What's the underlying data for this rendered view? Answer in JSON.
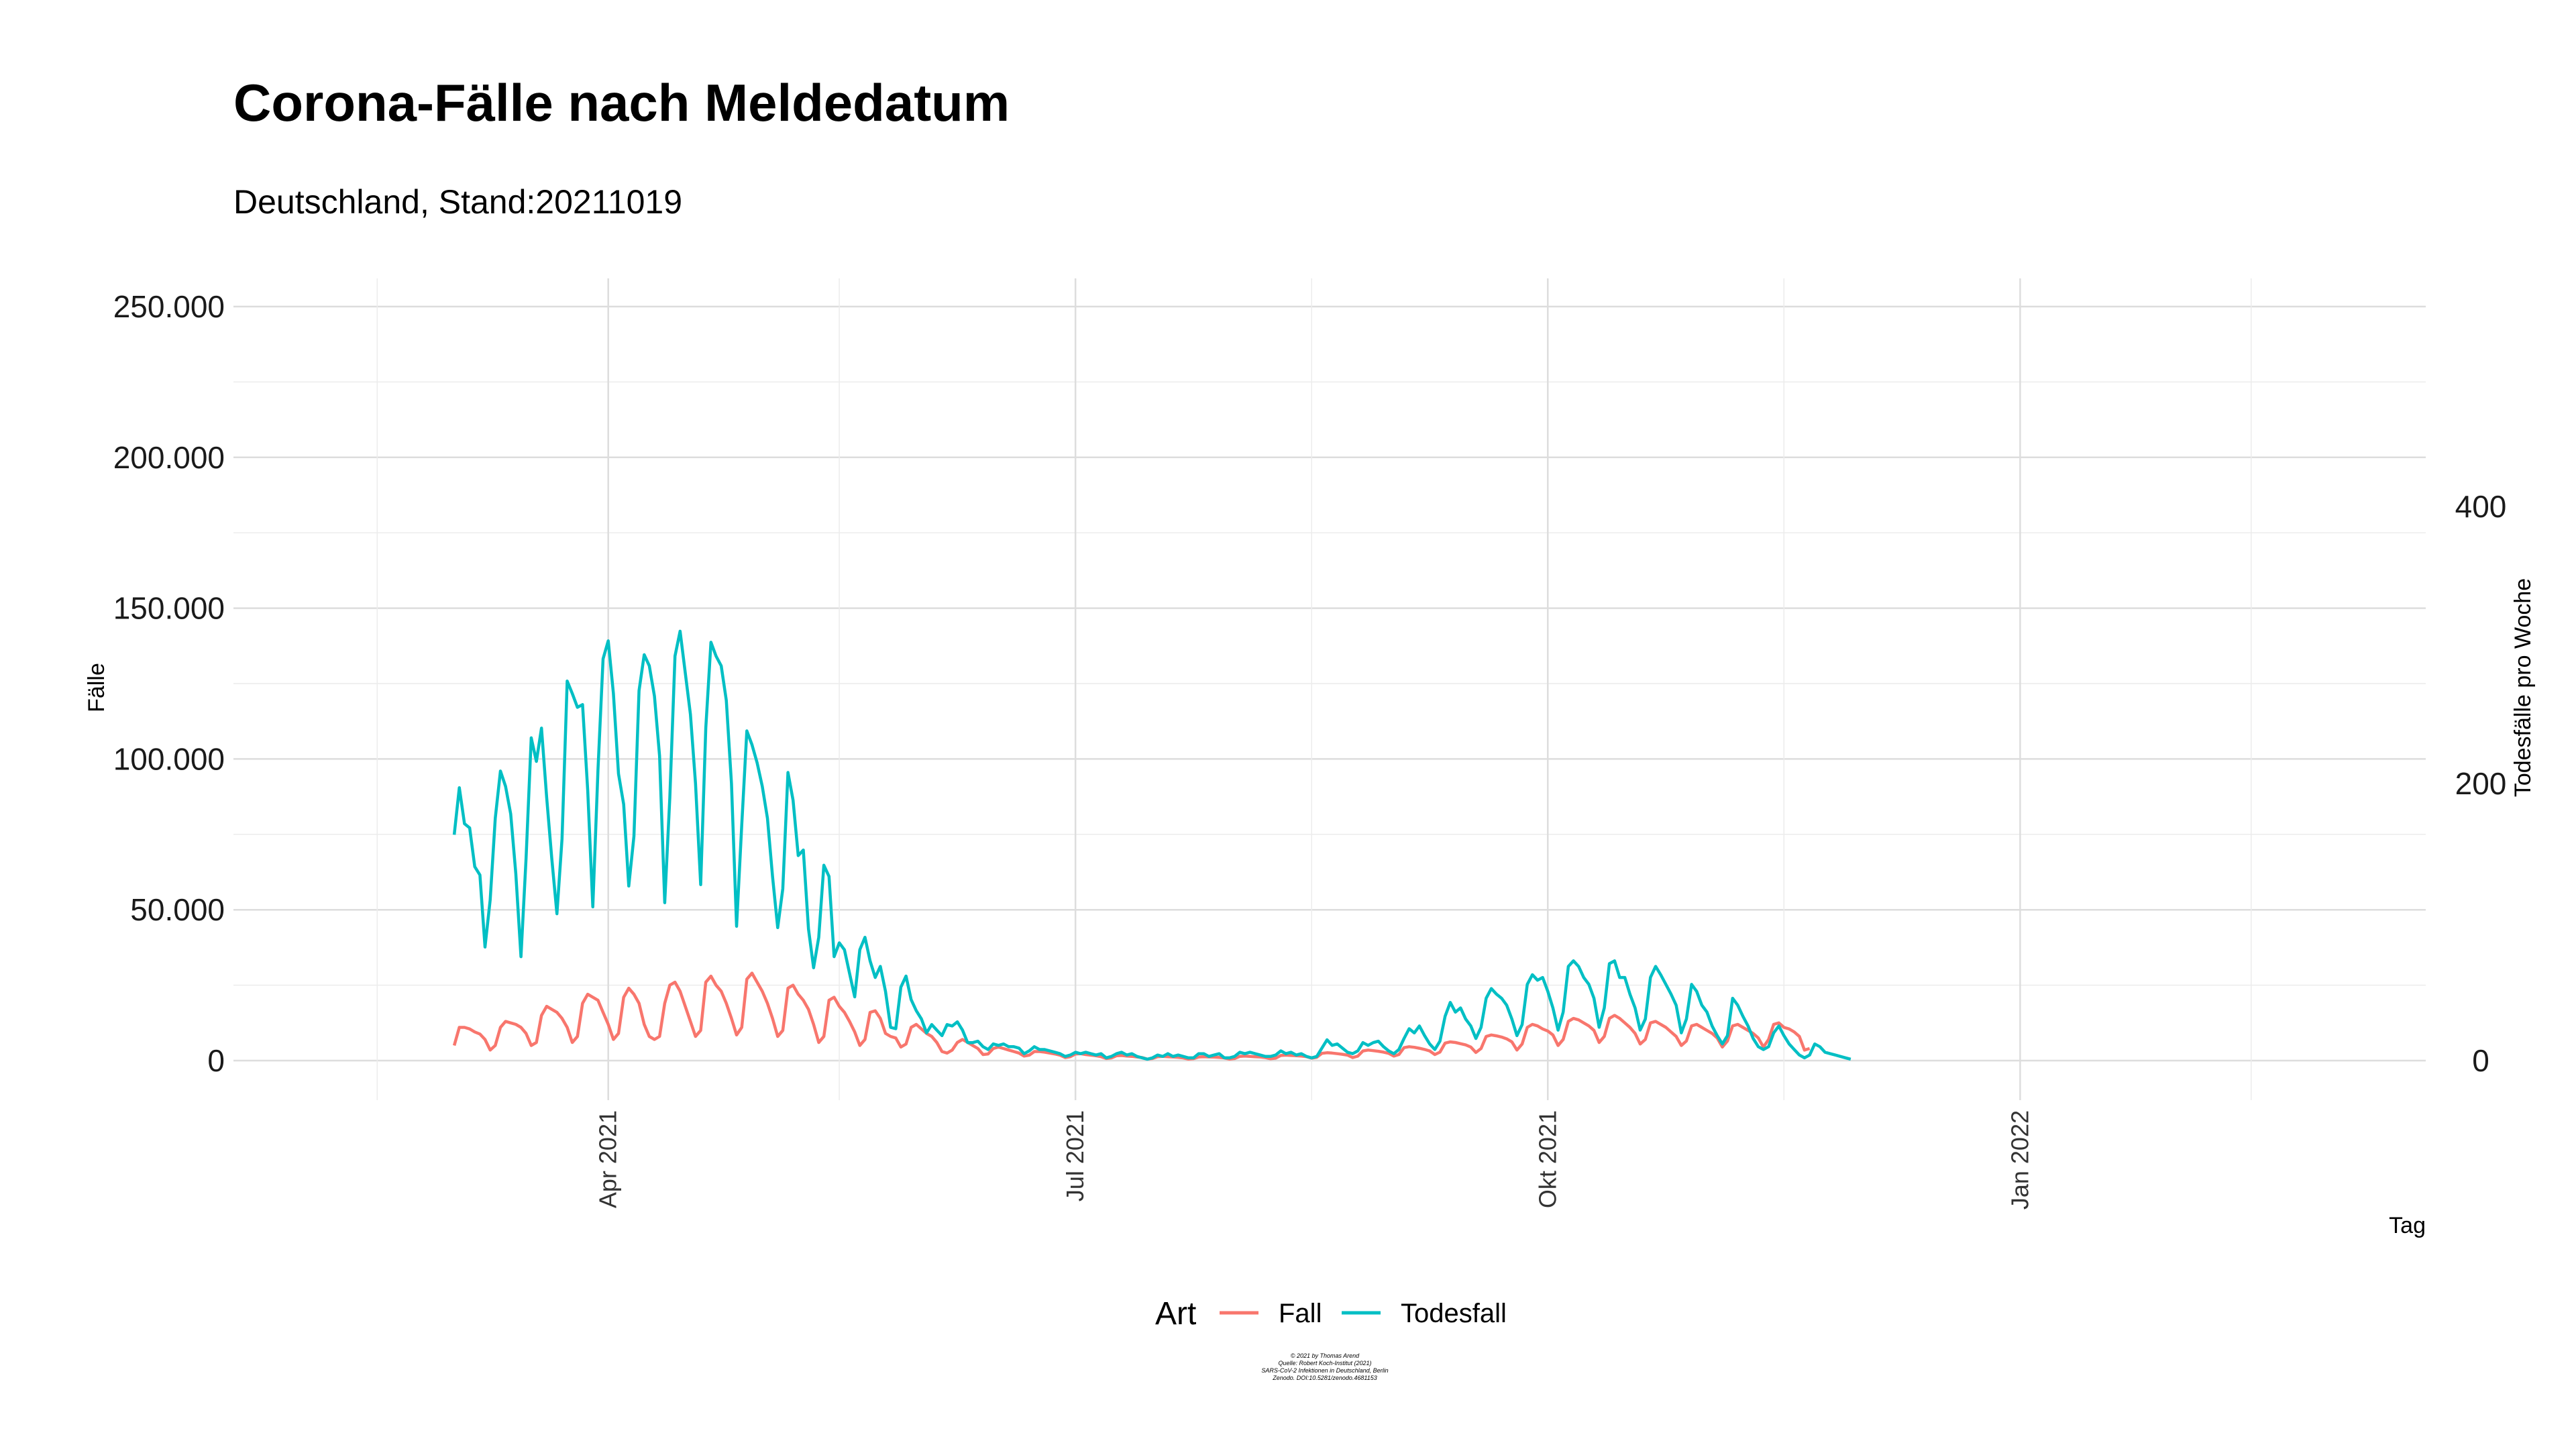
{
  "chart_data": {
    "type": "line",
    "title": "Corona-Fälle nach Meldedatum",
    "subtitle": "Deutschland, Stand:20211019",
    "xlabel": "Tag",
    "ylabel": "Fälle",
    "y2label": "Todesfälle pro Woche",
    "x_range": [
      "2021-01-18",
      "2022-03-21"
    ],
    "x_ticks": [
      {
        "date": "2021-04-01",
        "label": "Apr 2021"
      },
      {
        "date": "2021-07-01",
        "label": "Jul 2021"
      },
      {
        "date": "2021-10-01",
        "label": "Okt 2021"
      },
      {
        "date": "2022-01-01",
        "label": "Jan 2022"
      }
    ],
    "x_minor_ticks": [
      "2021-02-15",
      "2021-05-16",
      "2021-08-16",
      "2021-11-16",
      "2022-02-15"
    ],
    "ylim": [
      0,
      260000
    ],
    "y_ticks": [
      {
        "value": 0,
        "label": "0"
      },
      {
        "value": 50000,
        "label": "50.000"
      },
      {
        "value": 100000,
        "label": "100.000"
      },
      {
        "value": 150000,
        "label": "150.000"
      },
      {
        "value": 200000,
        "label": "200.000"
      },
      {
        "value": 250000,
        "label": "250.000"
      }
    ],
    "y2lim": [
      0,
      520
    ],
    "y2_ticks": [
      {
        "value": 0,
        "label": "0"
      },
      {
        "value": 200,
        "label": "200"
      },
      {
        "value": 400,
        "label": "400"
      }
    ],
    "grid": true,
    "legend": {
      "title": "Art",
      "position": "bottom"
    },
    "series": [
      {
        "name": "Fall",
        "color": "#F8766D",
        "axis": "left",
        "x_start": "2021-03-02",
        "y": [
          5000,
          11000,
          11000,
          10500,
          9500,
          8800,
          7000,
          3500,
          5000,
          11000,
          13000,
          12500,
          12000,
          11000,
          9000,
          5000,
          6000,
          15000,
          18000,
          17000,
          16000,
          14000,
          11000,
          6000,
          8000,
          19000,
          22000,
          21000,
          20000,
          16000,
          12000,
          7000,
          9000,
          21000,
          24000,
          22000,
          19000,
          12000,
          8000,
          7000,
          8000,
          19000,
          25000,
          26000,
          23000,
          18000,
          13000,
          8000,
          10000,
          26000,
          28000,
          25000,
          23000,
          19000,
          14000,
          8500,
          11000,
          27000,
          29000,
          26000,
          23000,
          19000,
          14000,
          8000,
          10000,
          24000,
          25000,
          22000,
          20000,
          17000,
          12000,
          6000,
          8000,
          20000,
          21000,
          18000,
          16000,
          13000,
          9500,
          5000,
          7000,
          16000,
          16500,
          14000,
          9000,
          8000,
          7500,
          4500,
          5500,
          11000,
          12000,
          10500,
          9000,
          8000,
          6000,
          3000,
          2500,
          3500,
          6000,
          7000,
          6000,
          5000,
          4000,
          2000,
          2200,
          4000,
          4500,
          4000,
          3500,
          3000,
          2500,
          1500,
          1800,
          3000,
          3000,
          2800,
          2500,
          2200,
          1800,
          1000,
          1300,
          2200,
          2300,
          2000,
          1800,
          1600,
          1300,
          700,
          900,
          1600,
          1700,
          1500,
          1400,
          1200,
          1000,
          500,
          700,
          1300,
          1400,
          1300,
          1200,
          1100,
          900,
          500,
          650,
          1200,
          1300,
          1200,
          1150,
          1050,
          900,
          500,
          700,
          1400,
          1500,
          1400,
          1300,
          1200,
          1000,
          600,
          800,
          1700,
          1800,
          1700,
          1600,
          1500,
          1300,
          800,
          1100,
          2400,
          2600,
          2500,
          2300,
          2100,
          1800,
          1000,
          1500,
          3200,
          3500,
          3300,
          3100,
          2800,
          2400,
          1500,
          2000,
          4300,
          4600,
          4400,
          4100,
          3700,
          3200,
          2000,
          2800,
          5800,
          6200,
          6000,
          5600,
          5200,
          4500,
          2700,
          4000,
          8000,
          8500,
          8200,
          7800,
          7200,
          6200,
          3500,
          5500,
          11000,
          12000,
          11500,
          10500,
          9800,
          8500,
          5000,
          7000,
          13000,
          14000,
          13500,
          12500,
          11500,
          10000,
          6000,
          8000,
          14000,
          15000,
          14000,
          12500,
          11000,
          9000,
          5500,
          7000,
          12500,
          13000,
          12000,
          11000,
          9500,
          8000,
          5000,
          6500,
          11500,
          12000,
          11000,
          10000,
          9000,
          7500,
          4500,
          6500,
          11500,
          12000,
          11000,
          10000,
          9000,
          7500,
          4500,
          7000,
          12000,
          12500,
          11000,
          10500,
          9500,
          8000,
          3500,
          4000
        ]
      },
      {
        "name": "Todesfall",
        "color": "#00BFC4",
        "axis": "right",
        "x_start": "2021-03-02",
        "y": [
          163,
          197,
          171,
          168,
          140,
          134,
          82,
          116,
          175,
          209,
          198,
          178,
          135,
          75,
          146,
          233,
          216,
          240,
          190,
          146,
          106,
          160,
          274,
          265,
          255,
          257,
          195,
          111,
          210,
          290,
          303,
          265,
          207,
          185,
          126,
          162,
          267,
          293,
          285,
          263,
          220,
          114,
          190,
          292,
          310,
          280,
          250,
          200,
          127,
          240,
          302,
          292,
          285,
          260,
          200,
          97,
          170,
          238,
          228,
          215,
          198,
          175,
          133,
          96,
          124,
          208,
          188,
          148,
          152,
          95,
          67,
          89,
          141,
          133,
          75,
          85,
          80,
          63,
          46,
          80,
          89,
          72,
          60,
          68,
          50,
          24,
          23,
          53,
          61,
          44,
          36,
          30,
          20,
          26,
          22,
          18,
          26,
          25,
          28,
          22,
          13,
          13,
          14,
          10,
          8,
          12,
          11,
          12,
          10,
          10,
          9,
          5,
          7,
          10,
          8,
          8,
          7,
          6,
          5,
          3,
          4,
          6,
          5,
          6,
          5,
          4,
          5,
          2,
          3,
          5,
          6,
          4,
          5,
          3,
          2,
          1,
          2,
          4,
          3,
          5,
          3,
          4,
          3,
          2,
          2,
          5,
          5,
          3,
          4,
          5,
          2,
          2,
          3,
          6,
          5,
          6,
          5,
          4,
          3,
          3,
          4,
          7,
          5,
          6,
          4,
          5,
          3,
          2,
          3,
          9,
          15,
          11,
          12,
          9,
          6,
          5,
          7,
          13,
          11,
          13,
          14,
          10,
          7,
          5,
          8,
          16,
          23,
          20,
          25,
          18,
          12,
          8,
          14,
          32,
          42,
          35,
          38,
          30,
          25,
          16,
          24,
          45,
          52,
          48,
          45,
          40,
          30,
          18,
          26,
          55,
          62,
          58,
          60,
          50,
          38,
          22,
          35,
          68,
          72,
          68,
          60,
          55,
          45,
          24,
          38,
          70,
          72,
          60,
          60,
          48,
          38,
          22,
          30,
          60,
          68,
          62,
          55,
          48,
          40,
          20,
          30,
          55,
          50,
          40,
          35,
          25,
          18,
          12,
          18,
          45,
          40,
          32,
          25,
          16,
          10,
          8,
          10,
          20,
          25,
          18,
          12,
          8,
          4,
          2,
          4,
          12,
          10,
          6,
          5,
          4,
          3,
          2,
          1
        ]
      }
    ]
  },
  "caption": [
    "© 2021 by Thomas Arend",
    "Quelle: Robert Koch-Institut (2021)",
    "SARS-CoV-2 Infektionen in Deutschland, Berlin",
    "Zenodo. DOI:10.5281/zenodo.4681153"
  ]
}
